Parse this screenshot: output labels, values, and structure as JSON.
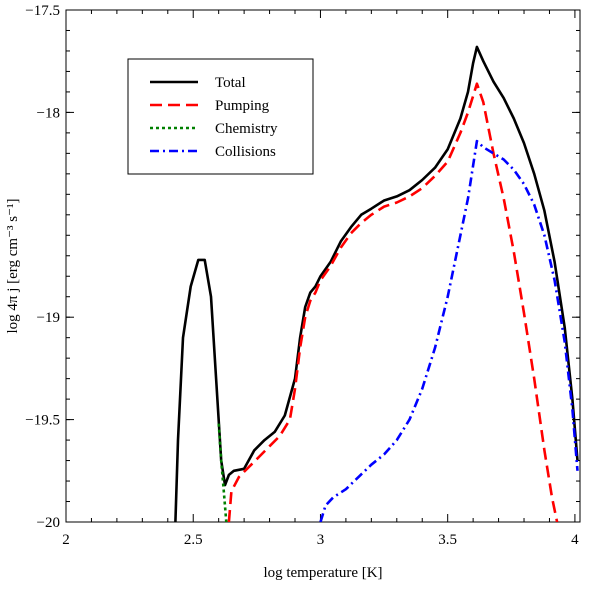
{
  "chart_data": {
    "type": "line",
    "xlabel": "log temperature [K]",
    "ylabel": "log 4π j [erg cm⁻³ s⁻¹]",
    "xlim": [
      2,
      4.02
    ],
    "ylim": [
      -20,
      -17.5
    ],
    "xticks": [
      2,
      2.5,
      3,
      3.5,
      4
    ],
    "xtick_labels": [
      "2",
      "2.5",
      "3",
      "3.5",
      "4"
    ],
    "yticks": [
      -20,
      -19.5,
      -19,
      -18,
      -17.5
    ],
    "ytick_labels": [
      "−20",
      "−19.5",
      "−19",
      "−18",
      "−17.5"
    ],
    "grid": false,
    "legend_position": "top-left",
    "series": [
      {
        "name": "Total",
        "color": "#000000",
        "dash": "solid",
        "points": [
          [
            2.43,
            -20.0
          ],
          [
            2.44,
            -19.6
          ],
          [
            2.46,
            -19.1
          ],
          [
            2.49,
            -18.85
          ],
          [
            2.52,
            -18.72
          ],
          [
            2.545,
            -18.72
          ],
          [
            2.57,
            -18.9
          ],
          [
            2.59,
            -19.3
          ],
          [
            2.61,
            -19.7
          ],
          [
            2.625,
            -19.82
          ],
          [
            2.64,
            -19.77
          ],
          [
            2.66,
            -19.75
          ],
          [
            2.7,
            -19.74
          ],
          [
            2.74,
            -19.65
          ],
          [
            2.78,
            -19.6
          ],
          [
            2.82,
            -19.56
          ],
          [
            2.86,
            -19.48
          ],
          [
            2.9,
            -19.3
          ],
          [
            2.92,
            -19.1
          ],
          [
            2.94,
            -18.95
          ],
          [
            2.96,
            -18.88
          ],
          [
            2.98,
            -18.85
          ],
          [
            3.0,
            -18.8
          ],
          [
            3.04,
            -18.73
          ],
          [
            3.08,
            -18.63
          ],
          [
            3.12,
            -18.56
          ],
          [
            3.16,
            -18.5
          ],
          [
            3.2,
            -18.47
          ],
          [
            3.25,
            -18.43
          ],
          [
            3.3,
            -18.41
          ],
          [
            3.35,
            -18.38
          ],
          [
            3.4,
            -18.33
          ],
          [
            3.45,
            -18.27
          ],
          [
            3.5,
            -18.18
          ],
          [
            3.55,
            -18.03
          ],
          [
            3.58,
            -17.9
          ],
          [
            3.6,
            -17.76
          ],
          [
            3.615,
            -17.68
          ],
          [
            3.64,
            -17.75
          ],
          [
            3.68,
            -17.85
          ],
          [
            3.72,
            -17.93
          ],
          [
            3.76,
            -18.03
          ],
          [
            3.8,
            -18.15
          ],
          [
            3.84,
            -18.3
          ],
          [
            3.88,
            -18.48
          ],
          [
            3.92,
            -18.73
          ],
          [
            3.96,
            -19.05
          ],
          [
            3.99,
            -19.4
          ],
          [
            4.01,
            -19.7
          ]
        ]
      },
      {
        "name": "Pumping",
        "color": "#ff0000",
        "dash": "long-dash",
        "points": [
          [
            2.64,
            -20.0
          ],
          [
            2.65,
            -19.85
          ],
          [
            2.68,
            -19.78
          ],
          [
            2.72,
            -19.73
          ],
          [
            2.76,
            -19.68
          ],
          [
            2.8,
            -19.63
          ],
          [
            2.84,
            -19.58
          ],
          [
            2.88,
            -19.5
          ],
          [
            2.9,
            -19.35
          ],
          [
            2.92,
            -19.15
          ],
          [
            2.94,
            -19.0
          ],
          [
            2.96,
            -18.92
          ],
          [
            2.98,
            -18.88
          ],
          [
            3.0,
            -18.82
          ],
          [
            3.04,
            -18.75
          ],
          [
            3.08,
            -18.66
          ],
          [
            3.12,
            -18.59
          ],
          [
            3.16,
            -18.54
          ],
          [
            3.2,
            -18.5
          ],
          [
            3.25,
            -18.46
          ],
          [
            3.3,
            -18.44
          ],
          [
            3.35,
            -18.41
          ],
          [
            3.4,
            -18.37
          ],
          [
            3.45,
            -18.31
          ],
          [
            3.5,
            -18.24
          ],
          [
            3.55,
            -18.1
          ],
          [
            3.58,
            -18.0
          ],
          [
            3.6,
            -17.92
          ],
          [
            3.615,
            -17.86
          ],
          [
            3.64,
            -17.95
          ],
          [
            3.68,
            -18.2
          ],
          [
            3.72,
            -18.42
          ],
          [
            3.76,
            -18.68
          ],
          [
            3.8,
            -18.98
          ],
          [
            3.84,
            -19.3
          ],
          [
            3.88,
            -19.65
          ],
          [
            3.91,
            -19.88
          ],
          [
            3.93,
            -20.0
          ]
        ]
      },
      {
        "name": "Chemistry",
        "color": "#008000",
        "dash": "dotted",
        "points": [
          [
            2.6,
            -19.52
          ],
          [
            2.61,
            -19.7
          ],
          [
            2.62,
            -19.85
          ],
          [
            2.63,
            -20.0
          ]
        ]
      },
      {
        "name": "Collisions",
        "color": "#0000ff",
        "dash": "dash-dot",
        "points": [
          [
            3.0,
            -20.0
          ],
          [
            3.02,
            -19.92
          ],
          [
            3.05,
            -19.88
          ],
          [
            3.1,
            -19.84
          ],
          [
            3.15,
            -19.78
          ],
          [
            3.2,
            -19.72
          ],
          [
            3.25,
            -19.67
          ],
          [
            3.3,
            -19.6
          ],
          [
            3.35,
            -19.5
          ],
          [
            3.4,
            -19.35
          ],
          [
            3.45,
            -19.15
          ],
          [
            3.5,
            -18.9
          ],
          [
            3.55,
            -18.6
          ],
          [
            3.58,
            -18.42
          ],
          [
            3.6,
            -18.26
          ],
          [
            3.615,
            -18.14
          ],
          [
            3.64,
            -18.17
          ],
          [
            3.68,
            -18.2
          ],
          [
            3.72,
            -18.23
          ],
          [
            3.76,
            -18.28
          ],
          [
            3.8,
            -18.35
          ],
          [
            3.84,
            -18.45
          ],
          [
            3.88,
            -18.6
          ],
          [
            3.92,
            -18.82
          ],
          [
            3.96,
            -19.12
          ],
          [
            3.99,
            -19.45
          ],
          [
            4.01,
            -19.75
          ]
        ]
      }
    ]
  }
}
